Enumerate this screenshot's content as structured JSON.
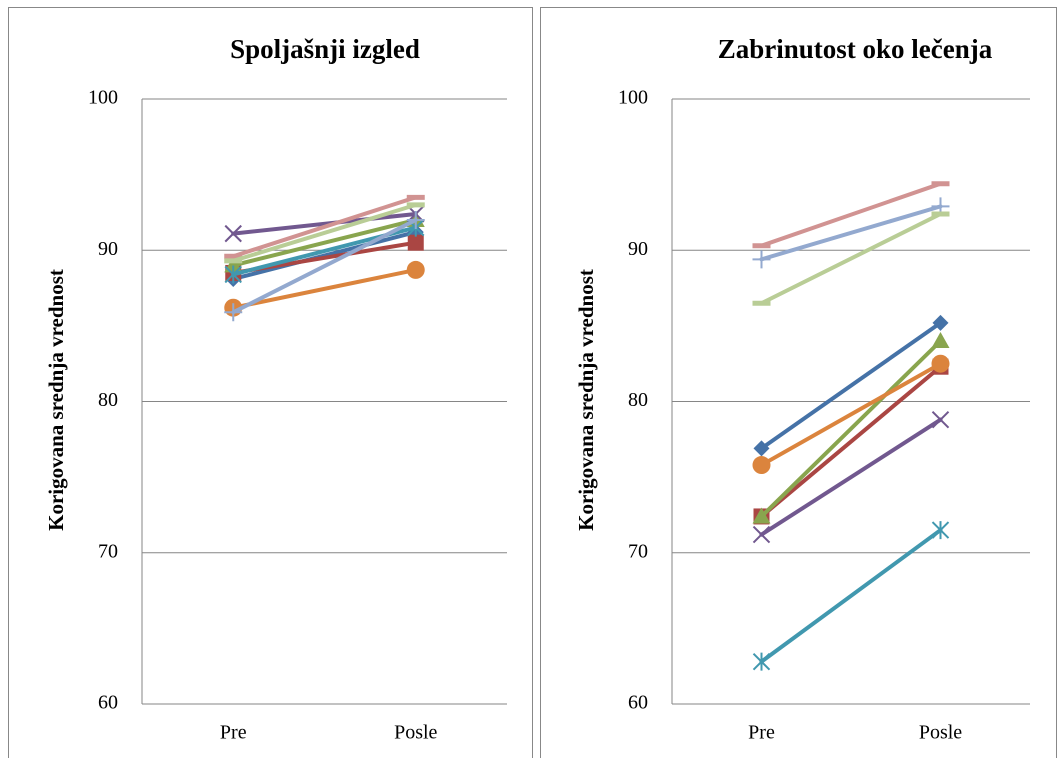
{
  "chart_data": [
    {
      "type": "line",
      "title": "Spoljašnji izgled",
      "y_label": "Korigovana srednja vrednost",
      "categories": [
        "Pre",
        "Posle"
      ],
      "ylim": [
        60,
        100
      ],
      "yticks": [
        60,
        70,
        80,
        90,
        100
      ],
      "grid": true,
      "series": [
        {
          "color": "#4572A7",
          "marker": "diamond",
          "values": [
            88.1,
            91.2
          ]
        },
        {
          "color": "#AA4643",
          "marker": "square",
          "values": [
            88.5,
            90.5
          ]
        },
        {
          "color": "#89A54E",
          "marker": "triangle",
          "values": [
            89.0,
            92.0
          ]
        },
        {
          "color": "#71588F",
          "marker": "x",
          "values": [
            91.1,
            92.4
          ]
        },
        {
          "color": "#4198AF",
          "marker": "asterisk",
          "values": [
            88.4,
            91.5
          ]
        },
        {
          "color": "#DB843D",
          "marker": "circle",
          "values": [
            86.2,
            88.7
          ]
        },
        {
          "color": "#93A9CF",
          "marker": "plus",
          "values": [
            85.9,
            92.0
          ]
        },
        {
          "color": "#D19392",
          "marker": "dash",
          "values": [
            89.6,
            93.5
          ]
        },
        {
          "color": "#B9CD96",
          "marker": "dash",
          "values": [
            89.3,
            93.0
          ]
        }
      ]
    },
    {
      "type": "line",
      "title": "Zabrinutost oko lečenja",
      "y_label": "Korigovana srednja vrednost",
      "categories": [
        "Pre",
        "Posle"
      ],
      "ylim": [
        60,
        100
      ],
      "yticks": [
        60,
        70,
        80,
        90,
        100
      ],
      "grid": true,
      "series": [
        {
          "color": "#4572A7",
          "marker": "diamond",
          "values": [
            76.9,
            85.2
          ]
        },
        {
          "color": "#AA4643",
          "marker": "square",
          "values": [
            72.4,
            82.3
          ]
        },
        {
          "color": "#89A54E",
          "marker": "triangle",
          "values": [
            72.4,
            84.0
          ]
        },
        {
          "color": "#71588F",
          "marker": "x",
          "values": [
            71.2,
            78.8
          ]
        },
        {
          "color": "#4198AF",
          "marker": "asterisk",
          "values": [
            62.8,
            71.5
          ]
        },
        {
          "color": "#DB843D",
          "marker": "circle",
          "values": [
            75.8,
            82.5
          ]
        },
        {
          "color": "#93A9CF",
          "marker": "plus",
          "values": [
            89.4,
            92.9
          ]
        },
        {
          "color": "#D19392",
          "marker": "dash",
          "values": [
            90.3,
            94.4
          ]
        },
        {
          "color": "#B9CD96",
          "marker": "dash",
          "values": [
            86.5,
            92.4
          ]
        }
      ]
    }
  ]
}
